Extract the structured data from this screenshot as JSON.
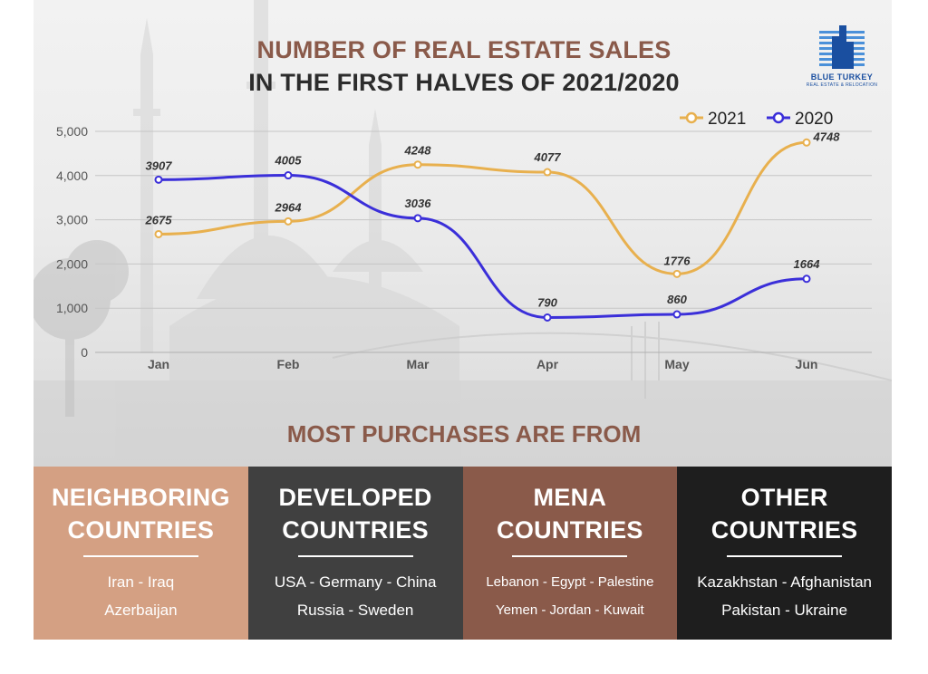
{
  "title_line1": "NUMBER OF REAL ESTATE SALES",
  "title_line2": "IN THE FIRST HALVES OF 2021/2020",
  "logo": {
    "name": "BLUE TURKEY",
    "tagline": "REAL ESTATE & RELOCATION"
  },
  "chart_data": {
    "type": "line",
    "categories": [
      "Jan",
      "Feb",
      "Mar",
      "Apr",
      "May",
      "Jun"
    ],
    "series": [
      {
        "name": "2021",
        "color": "#e8b04e",
        "values": [
          2675,
          2964,
          4248,
          4077,
          1776,
          4748
        ]
      },
      {
        "name": "2020",
        "color": "#3b2fd9",
        "values": [
          3907,
          4005,
          3036,
          790,
          860,
          1664
        ]
      }
    ],
    "y_ticks": [
      "0",
      "1,000",
      "2,000",
      "3,000",
      "4,000",
      "5,000"
    ],
    "ylim": [
      0,
      5000
    ],
    "grid": true,
    "legend_position": "top-right",
    "data_labels": true
  },
  "section_title": "MOST PURCHASES ARE FROM",
  "panels": [
    {
      "heading1": "NEIGHBORING",
      "heading2": "COUNTRIES",
      "line1": "Iran - Iraq",
      "line2": "Azerbaijan",
      "color": "#d4a083"
    },
    {
      "heading1": "DEVELOPED",
      "heading2": "COUNTRIES",
      "line1": "USA - Germany -  China",
      "line2": "Russia - Sweden",
      "color": "#404040"
    },
    {
      "heading1": "MENA",
      "heading2": "COUNTRIES",
      "line1": "Lebanon - Egypt - Palestine",
      "line2": "Yemen - Jordan - Kuwait",
      "color": "#8a5a4a"
    },
    {
      "heading1": "OTHER",
      "heading2": "COUNTRIES",
      "line1": "Kazakhstan -  Afghanistan",
      "line2": "Pakistan - Ukraine",
      "color": "#1e1e1e"
    }
  ]
}
